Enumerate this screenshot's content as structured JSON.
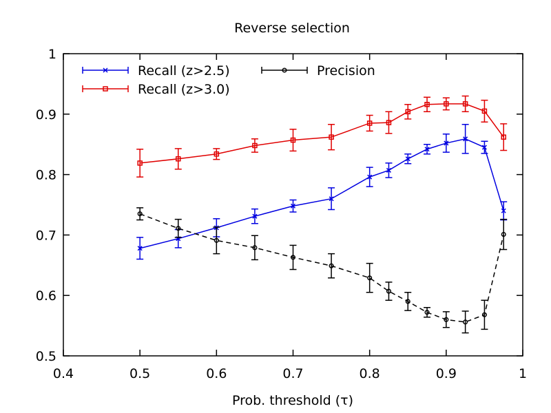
{
  "chart_data": {
    "type": "line",
    "title": "Reverse selection",
    "xlabel": "Prob. threshold (τ)",
    "ylabel": "",
    "xlim": [
      0.4,
      1.0
    ],
    "ylim": [
      0.5,
      1.0
    ],
    "x_ticks": [
      0.4,
      0.5,
      0.6,
      0.7,
      0.8,
      0.9,
      1.0
    ],
    "x_tick_labels": [
      "0.4",
      "0.5",
      "0.6",
      "0.7",
      "0.8",
      "0.9",
      "1"
    ],
    "y_ticks": [
      0.5,
      0.6,
      0.7,
      0.8,
      0.9,
      1.0
    ],
    "y_tick_labels": [
      "0.5",
      "0.6",
      "0.7",
      "0.8",
      "0.9",
      "1"
    ],
    "grid": false,
    "legend_position": "top-left",
    "x": [
      0.5,
      0.55,
      0.6,
      0.65,
      0.7,
      0.75,
      0.8,
      0.825,
      0.85,
      0.875,
      0.9,
      0.925,
      0.95,
      0.975
    ],
    "series": [
      {
        "name": "Recall (z>2.5)",
        "color": "#0000e0",
        "marker": "x",
        "dash": "solid",
        "values": [
          0.678,
          0.694,
          0.712,
          0.731,
          0.748,
          0.76,
          0.796,
          0.807,
          0.826,
          0.842,
          0.852,
          0.859,
          0.845,
          0.74
        ],
        "errors": [
          0.018,
          0.015,
          0.015,
          0.012,
          0.01,
          0.018,
          0.016,
          0.012,
          0.008,
          0.008,
          0.015,
          0.024,
          0.01,
          0.015
        ]
      },
      {
        "name": "Recall (z>3.0)",
        "color": "#e00000",
        "marker": "square",
        "dash": "solid",
        "values": [
          0.819,
          0.826,
          0.834,
          0.848,
          0.857,
          0.862,
          0.885,
          0.886,
          0.904,
          0.916,
          0.917,
          0.917,
          0.905,
          0.862
        ],
        "errors": [
          0.023,
          0.017,
          0.009,
          0.011,
          0.018,
          0.021,
          0.013,
          0.018,
          0.012,
          0.012,
          0.01,
          0.013,
          0.018,
          0.022
        ]
      },
      {
        "name": "Precision",
        "color": "#000000",
        "marker": "circle",
        "dash": "dashed",
        "values": [
          0.735,
          0.711,
          0.691,
          0.679,
          0.663,
          0.649,
          0.629,
          0.607,
          0.59,
          0.572,
          0.56,
          0.556,
          0.568,
          0.701
        ],
        "errors": [
          0.01,
          0.015,
          0.022,
          0.02,
          0.02,
          0.02,
          0.024,
          0.015,
          0.015,
          0.008,
          0.013,
          0.018,
          0.024,
          0.025
        ]
      }
    ]
  }
}
